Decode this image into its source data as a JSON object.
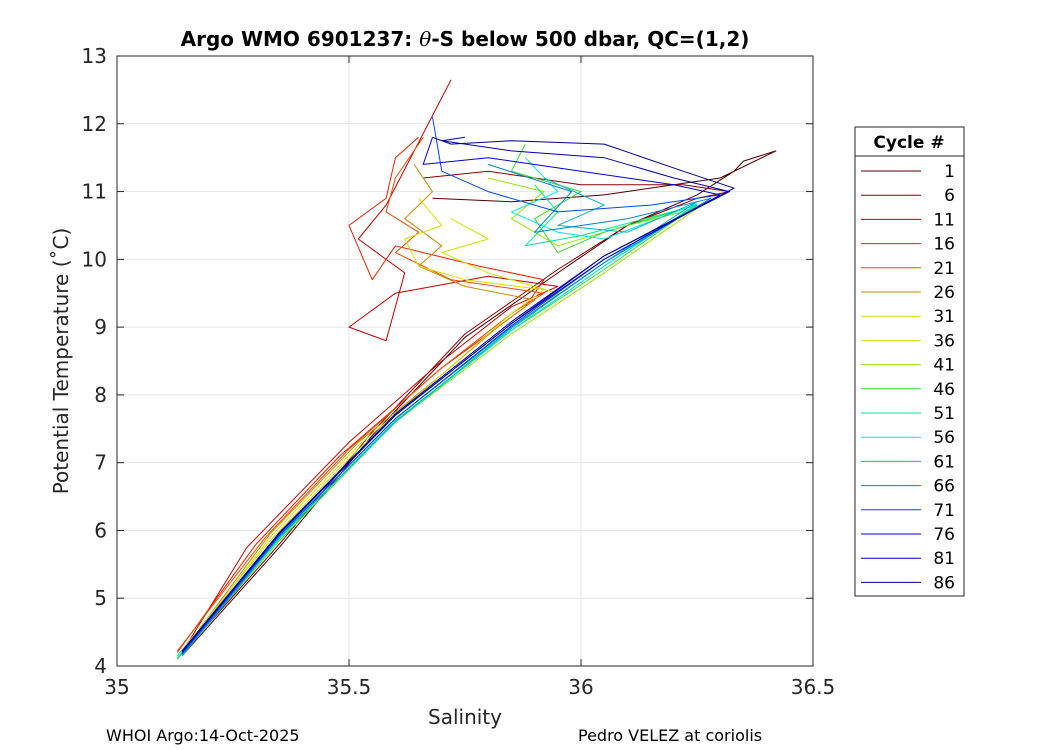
{
  "chart_data": {
    "type": "line",
    "title": "Argo WMO 6901237: θ-S below 500 dbar,  QC=(1,2)",
    "title_parts": {
      "prefix": "Argo WMO 6901237: ",
      "symbol": "θ",
      "suffix": "-S below 500 dbar,  QC=(1,2)"
    },
    "xlabel": "Salinity",
    "ylabel": "Potential Temperature (˚C)",
    "xlim": [
      35,
      36.5
    ],
    "ylim": [
      4,
      13
    ],
    "xticks": [
      35,
      35.5,
      36,
      36.5
    ],
    "xtick_labels": [
      "35",
      "35.5",
      "36",
      "36.5"
    ],
    "yticks": [
      4,
      5,
      6,
      7,
      8,
      9,
      10,
      11,
      12,
      13
    ],
    "ytick_labels": [
      "4",
      "5",
      "6",
      "7",
      "8",
      "9",
      "10",
      "11",
      "12",
      "13"
    ],
    "grid": true,
    "legend_title": "Cycle #",
    "legend_position": "right-outside",
    "series": [
      {
        "name": "1",
        "color": "#500000",
        "points": [
          [
            35.14,
            4.15
          ],
          [
            35.35,
            5.75
          ],
          [
            35.55,
            7.4
          ],
          [
            35.75,
            8.85
          ],
          [
            35.95,
            9.8
          ],
          [
            36.1,
            10.5
          ],
          [
            36.25,
            10.95
          ],
          [
            36.33,
            11.3
          ],
          [
            36.35,
            11.45
          ],
          [
            36.42,
            11.6
          ],
          [
            36.3,
            11.2
          ],
          [
            36.05,
            10.95
          ],
          [
            35.85,
            10.85
          ],
          [
            35.68,
            10.9
          ]
        ]
      },
      {
        "name": "6",
        "color": "#8a0000",
        "points": [
          [
            35.14,
            4.18
          ],
          [
            35.35,
            5.8
          ],
          [
            35.55,
            7.45
          ],
          [
            35.75,
            8.9
          ],
          [
            35.95,
            9.85
          ],
          [
            36.1,
            10.5
          ],
          [
            36.25,
            10.9
          ],
          [
            36.32,
            11.0
          ],
          [
            36.22,
            11.1
          ],
          [
            36.0,
            11.1
          ],
          [
            35.8,
            11.3
          ],
          [
            35.66,
            11.2
          ]
        ]
      },
      {
        "name": "11",
        "color": "#c40000",
        "points": [
          [
            35.14,
            4.2
          ],
          [
            35.28,
            5.75
          ],
          [
            35.5,
            7.3
          ],
          [
            35.7,
            8.5
          ],
          [
            35.85,
            9.3
          ],
          [
            35.95,
            9.6
          ],
          [
            35.8,
            9.75
          ],
          [
            35.6,
            9.5
          ],
          [
            35.5,
            9.0
          ],
          [
            35.58,
            8.8
          ],
          [
            35.62,
            9.8
          ],
          [
            35.52,
            10.3
          ],
          [
            35.58,
            10.8
          ],
          [
            35.72,
            12.65
          ]
        ]
      },
      {
        "name": "16",
        "color": "#e62000",
        "points": [
          [
            35.13,
            4.2
          ],
          [
            35.3,
            5.8
          ],
          [
            35.48,
            7.1
          ],
          [
            35.7,
            8.4
          ],
          [
            35.88,
            9.3
          ],
          [
            35.92,
            9.7
          ],
          [
            35.78,
            9.9
          ],
          [
            35.6,
            10.2
          ],
          [
            35.55,
            9.7
          ],
          [
            35.5,
            10.5
          ],
          [
            35.58,
            10.9
          ],
          [
            35.6,
            11.5
          ],
          [
            35.65,
            11.8
          ]
        ]
      },
      {
        "name": "21",
        "color": "#f04a00",
        "points": [
          [
            35.13,
            4.22
          ],
          [
            35.32,
            5.9
          ],
          [
            35.5,
            7.2
          ],
          [
            35.7,
            8.4
          ],
          [
            35.85,
            9.2
          ],
          [
            35.92,
            9.5
          ],
          [
            35.72,
            9.7
          ],
          [
            35.6,
            10.1
          ],
          [
            35.65,
            10.4
          ],
          [
            35.58,
            10.7
          ],
          [
            35.6,
            11.2
          ],
          [
            35.66,
            11.8
          ]
        ]
      },
      {
        "name": "26",
        "color": "#c88a00",
        "points": [
          [
            35.14,
            4.2
          ],
          [
            35.33,
            5.95
          ],
          [
            35.52,
            7.3
          ],
          [
            35.7,
            8.3
          ],
          [
            35.82,
            9.0
          ],
          [
            35.9,
            9.4
          ],
          [
            35.75,
            9.6
          ],
          [
            35.65,
            9.9
          ],
          [
            35.7,
            10.2
          ],
          [
            35.62,
            10.6
          ],
          [
            35.68,
            11.0
          ],
          [
            35.64,
            11.4
          ]
        ]
      },
      {
        "name": "31",
        "color": "#dcdc00",
        "points": [
          [
            35.14,
            4.18
          ],
          [
            35.33,
            5.9
          ],
          [
            35.52,
            7.25
          ],
          [
            35.7,
            8.3
          ],
          [
            35.85,
            9.2
          ],
          [
            35.92,
            9.55
          ],
          [
            35.75,
            9.7
          ],
          [
            35.65,
            9.9
          ],
          [
            35.62,
            10.3
          ],
          [
            35.7,
            10.5
          ],
          [
            35.65,
            10.9
          ]
        ]
      },
      {
        "name": "36",
        "color": "#c8e600",
        "points": [
          [
            35.13,
            4.15
          ],
          [
            35.33,
            5.85
          ],
          [
            35.52,
            7.2
          ],
          [
            35.72,
            8.3
          ],
          [
            35.88,
            9.1
          ],
          [
            35.95,
            9.5
          ],
          [
            35.8,
            9.8
          ],
          [
            35.7,
            10.1
          ],
          [
            35.8,
            10.3
          ],
          [
            35.72,
            10.6
          ]
        ]
      },
      {
        "name": "41",
        "color": "#96e600",
        "points": [
          [
            35.13,
            4.12
          ],
          [
            35.35,
            5.9
          ],
          [
            35.6,
            7.6
          ],
          [
            35.85,
            8.9
          ],
          [
            36.05,
            9.8
          ],
          [
            36.25,
            10.75
          ],
          [
            36.1,
            10.5
          ],
          [
            35.95,
            10.2
          ],
          [
            35.85,
            10.6
          ],
          [
            35.92,
            11.0
          ],
          [
            35.8,
            11.2
          ]
        ]
      },
      {
        "name": "46",
        "color": "#32dc32",
        "points": [
          [
            35.13,
            4.1
          ],
          [
            35.35,
            5.85
          ],
          [
            35.6,
            7.6
          ],
          [
            35.85,
            8.95
          ],
          [
            36.05,
            9.85
          ],
          [
            36.25,
            10.8
          ],
          [
            36.05,
            10.4
          ],
          [
            35.95,
            10.1
          ],
          [
            35.9,
            10.6
          ],
          [
            36.0,
            11.0
          ],
          [
            35.85,
            11.3
          ],
          [
            35.88,
            11.7
          ]
        ]
      },
      {
        "name": "51",
        "color": "#00e696",
        "points": [
          [
            35.13,
            4.12
          ],
          [
            35.35,
            5.88
          ],
          [
            35.6,
            7.62
          ],
          [
            35.85,
            8.95
          ],
          [
            36.05,
            9.9
          ],
          [
            36.25,
            10.8
          ],
          [
            36.0,
            10.35
          ],
          [
            35.88,
            10.2
          ],
          [
            35.95,
            10.7
          ],
          [
            35.9,
            11.1
          ]
        ]
      },
      {
        "name": "56",
        "color": "#00e6e6",
        "points": [
          [
            35.13,
            4.15
          ],
          [
            35.35,
            5.9
          ],
          [
            35.6,
            7.6
          ],
          [
            35.85,
            8.95
          ],
          [
            36.05,
            9.9
          ],
          [
            36.25,
            10.82
          ],
          [
            36.05,
            10.3
          ],
          [
            35.95,
            10.4
          ],
          [
            35.85,
            10.7
          ],
          [
            35.95,
            11.0
          ],
          [
            35.88,
            11.5
          ]
        ]
      },
      {
        "name": "61",
        "color": "#00b4c8",
        "points": [
          [
            35.14,
            4.15
          ],
          [
            35.35,
            5.9
          ],
          [
            35.6,
            7.6
          ],
          [
            35.85,
            8.98
          ],
          [
            36.05,
            9.95
          ],
          [
            36.25,
            10.85
          ],
          [
            36.1,
            10.4
          ],
          [
            35.95,
            10.5
          ],
          [
            36.05,
            10.8
          ],
          [
            35.92,
            11.2
          ]
        ]
      },
      {
        "name": "66",
        "color": "#0082c8",
        "points": [
          [
            35.14,
            4.17
          ],
          [
            35.35,
            5.92
          ],
          [
            35.6,
            7.65
          ],
          [
            35.85,
            9.0
          ],
          [
            36.05,
            9.95
          ],
          [
            36.28,
            10.9
          ],
          [
            36.1,
            10.6
          ],
          [
            35.9,
            10.4
          ],
          [
            35.98,
            11.0
          ],
          [
            35.8,
            11.4
          ]
        ]
      },
      {
        "name": "71",
        "color": "#0046ff",
        "points": [
          [
            35.14,
            4.18
          ],
          [
            35.35,
            5.93
          ],
          [
            35.6,
            7.65
          ],
          [
            35.85,
            9.02
          ],
          [
            36.05,
            10.0
          ],
          [
            36.3,
            10.95
          ],
          [
            36.15,
            10.8
          ],
          [
            35.95,
            10.7
          ],
          [
            35.8,
            11.0
          ],
          [
            35.7,
            11.3
          ],
          [
            35.68,
            12.1
          ]
        ]
      },
      {
        "name": "76",
        "color": "#0000e6",
        "points": [
          [
            35.14,
            4.2
          ],
          [
            35.35,
            5.95
          ],
          [
            35.6,
            7.7
          ],
          [
            35.85,
            9.05
          ],
          [
            36.05,
            10.0
          ],
          [
            36.3,
            10.95
          ],
          [
            36.2,
            11.1
          ],
          [
            36.0,
            11.3
          ],
          [
            35.8,
            11.5
          ],
          [
            35.66,
            11.4
          ],
          [
            35.68,
            11.8
          ]
        ]
      },
      {
        "name": "81",
        "color": "#0000b4",
        "points": [
          [
            35.14,
            4.2
          ],
          [
            35.35,
            5.96
          ],
          [
            35.6,
            7.7
          ],
          [
            35.85,
            9.05
          ],
          [
            36.05,
            10.05
          ],
          [
            36.32,
            11.0
          ],
          [
            36.2,
            11.2
          ],
          [
            36.05,
            11.5
          ],
          [
            35.85,
            11.6
          ],
          [
            35.7,
            11.75
          ],
          [
            35.75,
            11.8
          ]
        ]
      },
      {
        "name": "86",
        "color": "#000096",
        "points": [
          [
            35.14,
            4.22
          ],
          [
            35.35,
            5.97
          ],
          [
            35.6,
            7.72
          ],
          [
            35.85,
            9.08
          ],
          [
            36.05,
            10.05
          ],
          [
            36.33,
            11.05
          ],
          [
            36.22,
            11.3
          ],
          [
            36.05,
            11.7
          ],
          [
            35.85,
            11.75
          ],
          [
            35.72,
            11.7
          ],
          [
            35.68,
            11.8
          ]
        ]
      }
    ]
  },
  "footer": {
    "left": "WHOI Argo:14-Oct-2025",
    "right": "Pedro VELEZ at coriolis"
  }
}
